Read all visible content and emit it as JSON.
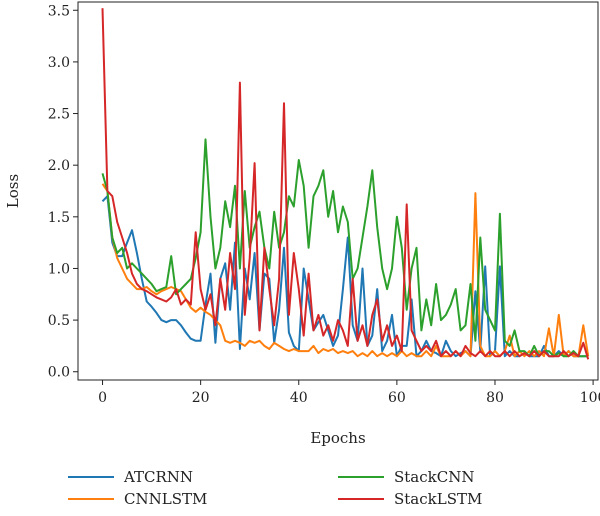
{
  "chart_data": {
    "type": "line",
    "xlabel": "Epochs",
    "ylabel": "Loss",
    "xlim": [
      -5,
      101
    ],
    "ylim": [
      -0.08,
      3.58
    ],
    "xticks": [
      "0",
      "20",
      "40",
      "60",
      "80",
      "100"
    ],
    "yticks": [
      "0.0",
      "0.5",
      "1.0",
      "1.5",
      "2.0",
      "2.5",
      "3.0",
      "3.5"
    ],
    "grid": false,
    "legend": "bottom",
    "x": [
      0,
      1,
      2,
      3,
      4,
      5,
      6,
      7,
      8,
      9,
      10,
      11,
      12,
      13,
      14,
      15,
      16,
      17,
      18,
      19,
      20,
      21,
      22,
      23,
      24,
      25,
      26,
      27,
      28,
      29,
      30,
      31,
      32,
      33,
      34,
      35,
      36,
      37,
      38,
      39,
      40,
      41,
      42,
      43,
      44,
      45,
      46,
      47,
      48,
      49,
      50,
      51,
      52,
      53,
      54,
      55,
      56,
      57,
      58,
      59,
      60,
      61,
      62,
      63,
      64,
      65,
      66,
      67,
      68,
      69,
      70,
      71,
      72,
      73,
      74,
      75,
      76,
      77,
      78,
      79,
      80,
      81,
      82,
      83,
      84,
      85,
      86,
      87,
      88,
      89,
      90,
      91,
      92,
      93,
      94,
      95,
      96,
      97,
      98,
      99
    ],
    "series": [
      {
        "name": "ATCRNN",
        "color": "#1f77b4",
        "values": [
          1.65,
          1.7,
          1.25,
          1.12,
          1.12,
          1.25,
          1.37,
          1.15,
          0.9,
          0.68,
          0.63,
          0.57,
          0.5,
          0.48,
          0.5,
          0.5,
          0.45,
          0.38,
          0.32,
          0.3,
          0.3,
          0.65,
          0.95,
          0.28,
          0.9,
          1.05,
          0.6,
          1.25,
          0.22,
          1.0,
          0.7,
          1.15,
          0.4,
          0.95,
          0.9,
          0.28,
          0.6,
          1.2,
          0.38,
          0.25,
          0.2,
          1.0,
          0.7,
          0.4,
          0.48,
          0.55,
          0.4,
          0.25,
          0.35,
          0.8,
          1.3,
          0.45,
          0.3,
          1.0,
          0.25,
          0.35,
          0.8,
          0.2,
          0.3,
          0.55,
          0.15,
          0.25,
          0.25,
          0.7,
          0.15,
          0.2,
          0.3,
          0.2,
          0.18,
          0.15,
          0.3,
          0.2,
          0.15,
          0.18,
          0.2,
          0.15,
          0.78,
          0.2,
          1.02,
          0.15,
          0.2,
          1.02,
          0.15,
          0.2,
          0.15,
          0.15,
          0.18,
          0.15,
          0.15,
          0.15,
          0.25,
          0.15,
          0.15,
          0.2,
          0.15,
          0.2,
          0.15,
          0.15,
          0.15,
          0.15
        ]
      },
      {
        "name": "CNNLSTM",
        "color": "#ff7f0e",
        "values": [
          1.82,
          1.75,
          1.3,
          1.1,
          1.0,
          0.9,
          0.85,
          0.8,
          0.8,
          0.82,
          0.78,
          0.75,
          0.78,
          0.8,
          0.82,
          0.8,
          0.78,
          0.7,
          0.62,
          0.58,
          0.62,
          0.58,
          0.55,
          0.5,
          0.45,
          0.3,
          0.28,
          0.3,
          0.28,
          0.25,
          0.3,
          0.28,
          0.3,
          0.25,
          0.22,
          0.28,
          0.25,
          0.22,
          0.2,
          0.22,
          0.2,
          0.2,
          0.2,
          0.25,
          0.18,
          0.22,
          0.2,
          0.22,
          0.18,
          0.2,
          0.18,
          0.2,
          0.15,
          0.18,
          0.15,
          0.2,
          0.15,
          0.18,
          0.15,
          0.18,
          0.15,
          0.2,
          0.15,
          0.18,
          0.15,
          0.15,
          0.2,
          0.15,
          0.25,
          0.15,
          0.15,
          0.15,
          0.2,
          0.15,
          0.2,
          0.15,
          1.73,
          0.25,
          0.15,
          0.15,
          0.2,
          0.15,
          0.2,
          0.35,
          0.15,
          0.2,
          0.15,
          0.2,
          0.15,
          0.2,
          0.15,
          0.42,
          0.15,
          0.55,
          0.15,
          0.2,
          0.15,
          0.15,
          0.45,
          0.15
        ]
      },
      {
        "name": "StackCNN",
        "color": "#2ca02c",
        "values": [
          1.92,
          1.75,
          1.3,
          1.15,
          1.2,
          1.0,
          1.05,
          1.0,
          0.95,
          0.9,
          0.85,
          0.78,
          0.8,
          0.82,
          1.12,
          0.75,
          0.8,
          0.85,
          0.9,
          1.1,
          1.35,
          2.25,
          1.5,
          1.0,
          1.2,
          1.65,
          1.4,
          1.8,
          1.0,
          1.75,
          1.2,
          1.4,
          1.55,
          1.2,
          1.0,
          1.55,
          1.2,
          1.35,
          1.7,
          1.6,
          2.05,
          1.8,
          1.2,
          1.7,
          1.8,
          1.95,
          1.5,
          1.75,
          1.35,
          1.6,
          1.45,
          0.9,
          1.0,
          1.3,
          1.6,
          1.95,
          1.4,
          1.0,
          0.8,
          1.0,
          1.5,
          1.2,
          0.6,
          1.0,
          1.2,
          0.4,
          0.7,
          0.45,
          0.85,
          0.5,
          0.55,
          0.65,
          0.8,
          0.4,
          0.45,
          0.85,
          0.3,
          1.3,
          0.6,
          0.5,
          0.4,
          1.53,
          0.3,
          0.25,
          0.4,
          0.2,
          0.2,
          0.15,
          0.25,
          0.15,
          0.2,
          0.2,
          0.15,
          0.18,
          0.15,
          0.15,
          0.2,
          0.15,
          0.15,
          0.15
        ]
      },
      {
        "name": "StackLSTM",
        "color": "#d62728",
        "values": [
          3.52,
          1.75,
          1.7,
          1.45,
          1.3,
          1.15,
          0.95,
          0.85,
          0.8,
          0.78,
          0.75,
          0.72,
          0.7,
          0.68,
          0.72,
          0.8,
          0.65,
          0.7,
          0.65,
          1.35,
          0.8,
          0.6,
          0.75,
          0.45,
          0.9,
          0.6,
          1.15,
          0.8,
          2.8,
          0.55,
          1.1,
          2.02,
          0.4,
          1.2,
          0.8,
          0.45,
          0.9,
          2.6,
          0.55,
          1.15,
          0.8,
          0.35,
          0.95,
          0.4,
          0.55,
          0.35,
          0.45,
          0.3,
          0.5,
          0.4,
          0.25,
          0.9,
          0.3,
          0.45,
          0.25,
          0.55,
          0.7,
          0.3,
          0.45,
          0.25,
          0.35,
          0.2,
          1.62,
          0.4,
          0.3,
          0.2,
          0.25,
          0.2,
          0.3,
          0.15,
          0.2,
          0.15,
          0.2,
          0.15,
          0.25,
          0.18,
          0.15,
          0.2,
          0.15,
          0.2,
          0.15,
          0.15,
          0.2,
          0.15,
          0.2,
          0.15,
          0.18,
          0.15,
          0.2,
          0.15,
          0.2,
          0.15,
          0.15,
          0.15,
          0.2,
          0.15,
          0.18,
          0.15,
          0.28,
          0.12
        ]
      }
    ]
  }
}
